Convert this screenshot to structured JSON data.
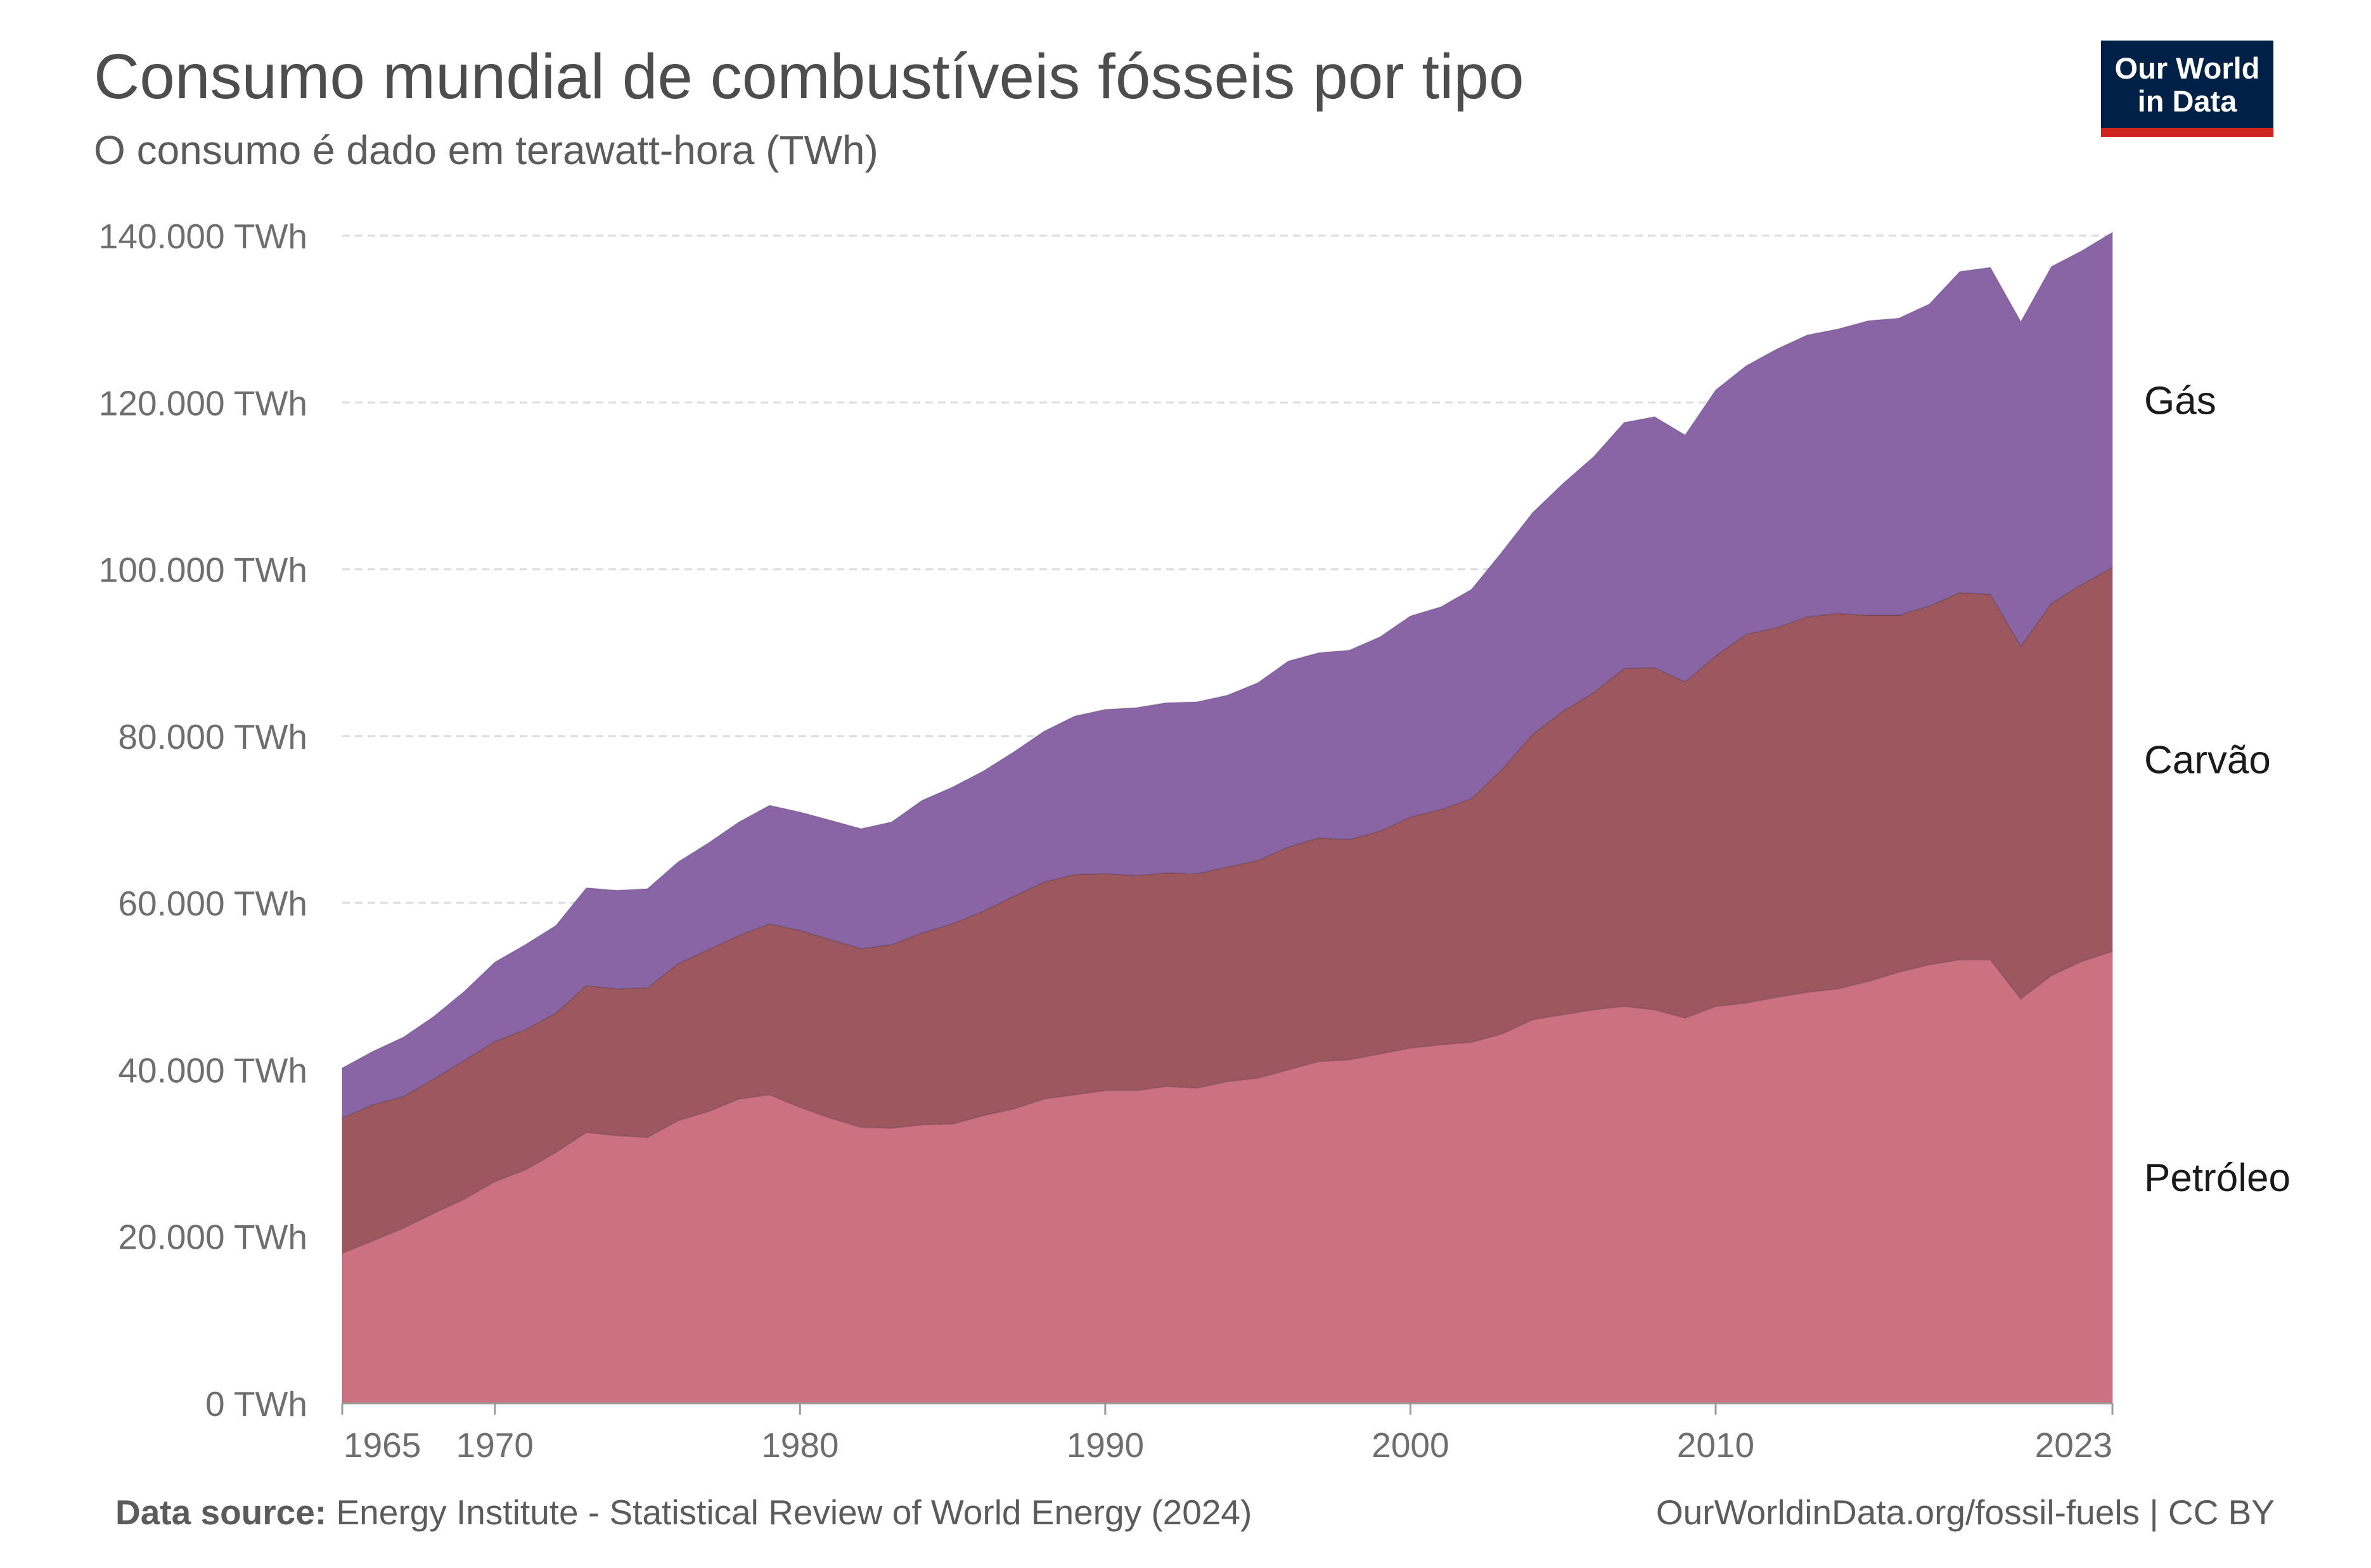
{
  "title": "Consumo mundial de combustíveis fósseis por tipo",
  "subtitle": "O consumo é dado em terawatt-hora (TWh)",
  "logo": {
    "line1": "Our World",
    "line2": "in Data"
  },
  "footer": {
    "source_label": "Data source:",
    "source_text": "Energy Institute - Statistical Review of World Energy (2024)",
    "right": "OurWorldinData.org/fossil-fuels | CC BY"
  },
  "colors": {
    "petroleo": "#cc7180",
    "carvao": "#9d585f",
    "gas": "#8965a6",
    "grid": "#dcdcdc",
    "axis": "#9a9a9a"
  },
  "chart_data": {
    "type": "area",
    "stacked": true,
    "title": "Consumo mundial de combustíveis fósseis por tipo",
    "subtitle": "O consumo é dado em terawatt-hora (TWh)",
    "ylim": [
      0,
      140000
    ],
    "y_ticks": [
      0,
      20000,
      40000,
      60000,
      80000,
      100000,
      120000,
      140000
    ],
    "y_tick_labels": [
      "0 TWh",
      "20.000 TWh",
      "40.000 TWh",
      "60.000 TWh",
      "80.000 TWh",
      "100.000 TWh",
      "120.000 TWh",
      "140.000 TWh"
    ],
    "xlim": [
      1965,
      2023
    ],
    "x_ticks": [
      1965,
      1970,
      1980,
      1990,
      2000,
      2010,
      2023
    ],
    "x_tick_labels": [
      "1965",
      "1970",
      "1980",
      "1990",
      "2000",
      "2010",
      "2023"
    ],
    "grid": "horizontal dashed",
    "legend": "inline-right",
    "x": [
      1965,
      1966,
      1967,
      1968,
      1969,
      1970,
      1971,
      1972,
      1973,
      1974,
      1975,
      1976,
      1977,
      1978,
      1979,
      1980,
      1981,
      1982,
      1983,
      1984,
      1985,
      1986,
      1987,
      1988,
      1989,
      1990,
      1991,
      1992,
      1993,
      1994,
      1995,
      1996,
      1997,
      1998,
      1999,
      2000,
      2001,
      2002,
      2003,
      2004,
      2005,
      2006,
      2007,
      2008,
      2009,
      2010,
      2011,
      2012,
      2013,
      2014,
      2015,
      2016,
      2017,
      2018,
      2019,
      2020,
      2021,
      2022,
      2023
    ],
    "series": [
      {
        "name": "Petróleo",
        "values": [
          18000,
          19500,
          21000,
          22800,
          24500,
          26600,
          28000,
          30100,
          32500,
          32100,
          31900,
          33900,
          35000,
          36500,
          37000,
          35500,
          34200,
          33100,
          33000,
          33400,
          33500,
          34500,
          35300,
          36500,
          37000,
          37500,
          37500,
          38000,
          37800,
          38600,
          39000,
          40000,
          41000,
          41200,
          41900,
          42600,
          43000,
          43300,
          44300,
          46000,
          46600,
          47200,
          47600,
          47200,
          46200,
          47600,
          48000,
          48700,
          49300,
          49700,
          50600,
          51700,
          52600,
          53200,
          53200,
          48500,
          51300,
          53000,
          54200
        ]
      },
      {
        "name": "Carvão",
        "values": [
          16200,
          16300,
          15800,
          16100,
          16600,
          16800,
          16800,
          16700,
          17600,
          17600,
          17900,
          18800,
          19400,
          19600,
          20500,
          21200,
          21400,
          21400,
          22000,
          23000,
          24000,
          24500,
          25500,
          26000,
          26400,
          26000,
          25800,
          25600,
          25700,
          25700,
          26100,
          26700,
          26800,
          26400,
          26700,
          27700,
          28200,
          29200,
          31700,
          34200,
          36400,
          38000,
          40500,
          41000,
          40300,
          42000,
          44200,
          44300,
          45000,
          45000,
          43900,
          42800,
          43000,
          44000,
          43800,
          42300,
          44600,
          45200,
          46000
        ]
      },
      {
        "name": "Gás",
        "values": [
          6000,
          6400,
          7100,
          7500,
          8300,
          9500,
          10200,
          10500,
          11700,
          11800,
          11900,
          12200,
          12800,
          13600,
          14200,
          14200,
          14300,
          14400,
          14700,
          15900,
          16400,
          16800,
          17300,
          18100,
          19000,
          19700,
          20100,
          20400,
          20600,
          20600,
          21300,
          22300,
          22200,
          22700,
          23300,
          24100,
          24300,
          25100,
          26100,
          26600,
          27300,
          28300,
          29500,
          30100,
          29600,
          31900,
          32200,
          33400,
          33800,
          34100,
          35300,
          35600,
          36200,
          38500,
          39200,
          38900,
          40400,
          40000,
          40200
        ]
      }
    ]
  }
}
